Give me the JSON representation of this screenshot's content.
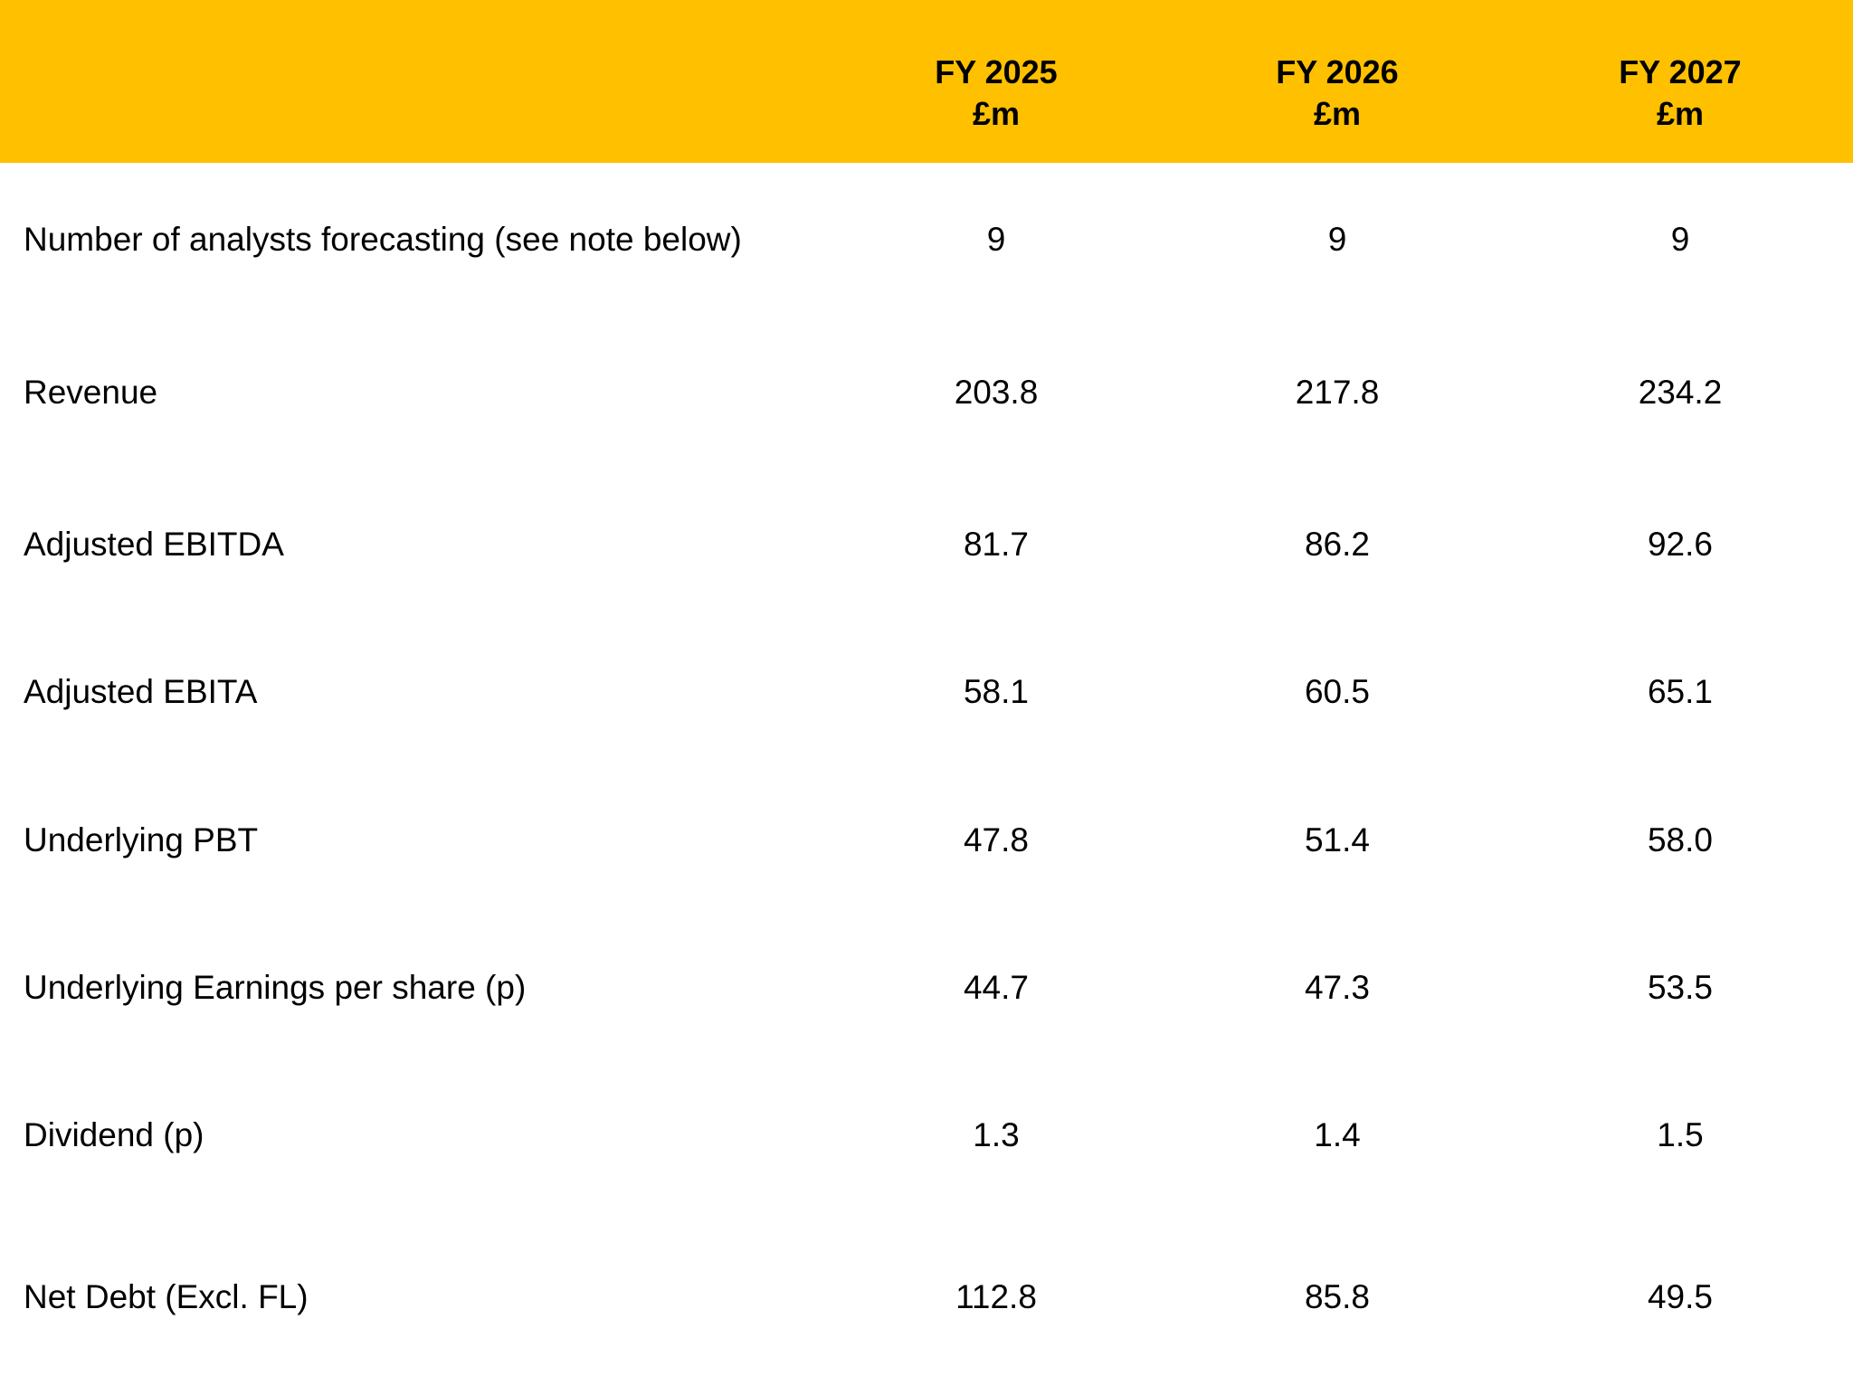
{
  "table": {
    "columns": [
      {
        "year": "FY 2025",
        "unit": "£m"
      },
      {
        "year": "FY 2026",
        "unit": "£m"
      },
      {
        "year": "FY 2027",
        "unit": "£m"
      }
    ],
    "rows": [
      [
        "Number of analysts forecasting (see note below)",
        "9",
        "9",
        "9"
      ],
      [
        "Revenue",
        "203.8",
        "217.8",
        "234.2"
      ],
      [
        "Adjusted EBITDA",
        "81.7",
        "86.2",
        "92.6"
      ],
      [
        "Adjusted EBITA",
        "58.1",
        "60.5",
        "65.1"
      ],
      [
        "Underlying PBT",
        "47.8",
        "51.4",
        "58.0"
      ],
      [
        "Underlying Earnings per share (p)",
        "44.7",
        "47.3",
        "53.5"
      ],
      [
        "Dividend (p)",
        "1.3",
        "1.4",
        "1.5"
      ],
      [
        "Net Debt (Excl. FL)",
        "112.8",
        "85.8",
        "49.5"
      ]
    ]
  }
}
